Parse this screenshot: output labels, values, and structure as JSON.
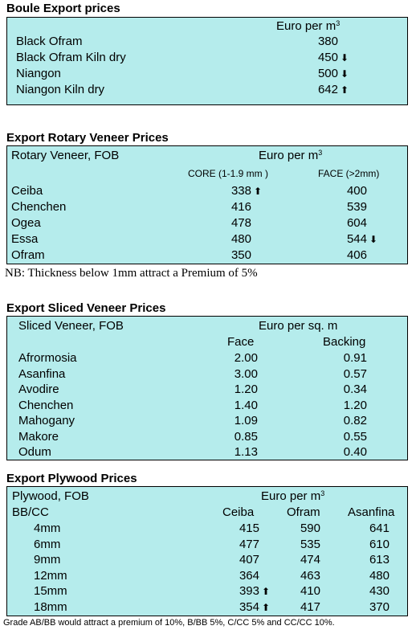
{
  "boule": {
    "title": "Boule Export prices",
    "unit": "Euro per m",
    "unit_sup": "3",
    "rows": [
      {
        "name": "Black Ofram",
        "value": "380",
        "arrow": ""
      },
      {
        "name": "Black Ofram  Kiln dry",
        "value": "450",
        "arrow": "down"
      },
      {
        "name": "Niangon",
        "value": "500",
        "arrow": "down"
      },
      {
        "name": "Niangon Kiln dry",
        "value": "642",
        "arrow": "up"
      }
    ]
  },
  "rotary": {
    "title": "Export Rotary Veneer Prices",
    "header_label": "Rotary Veneer,  FOB",
    "unit": "Euro  per m",
    "unit_sup": "3",
    "col_core": "CORE (1-1.9 mm )",
    "col_face": "FACE (>2mm)",
    "rows": [
      {
        "name": "Ceiba",
        "core": "338",
        "core_arrow": "up",
        "face": "400",
        "face_arrow": ""
      },
      {
        "name": "Chenchen",
        "core": "416",
        "core_arrow": "",
        "face": "539",
        "face_arrow": ""
      },
      {
        "name": "Ogea",
        "core": "478",
        "core_arrow": "",
        "face": "604",
        "face_arrow": ""
      },
      {
        "name": "Essa",
        "core": "480",
        "core_arrow": "",
        "face": "544",
        "face_arrow": "down"
      },
      {
        "name": "Ofram",
        "core": "350",
        "core_arrow": "",
        "face": "406",
        "face_arrow": ""
      }
    ],
    "note": "NB: Thickness below 1mm attract a Premium of 5%"
  },
  "sliced": {
    "title": "Export Sliced Veneer Prices",
    "header_label": "Sliced Veneer, FOB",
    "unit": "Euro per sq. m",
    "col_face": "Face",
    "col_backing": "Backing",
    "rows": [
      {
        "name": "Afrormosia",
        "face": "2.00",
        "backing": "0.91"
      },
      {
        "name": "Asanfina",
        "face": "3.00",
        "backing": "0.57"
      },
      {
        "name": "Avodire",
        "face": "1.20",
        "backing": "0.34"
      },
      {
        "name": "Chenchen",
        "face": "1.40",
        "backing": "1.20"
      },
      {
        "name": "Mahogany",
        "face": "1.09",
        "backing": "0.82"
      },
      {
        "name": "Makore",
        "face": "0.85",
        "backing": "0.55"
      },
      {
        "name": "Odum",
        "face": "1.13",
        "backing": "0.40"
      }
    ]
  },
  "plywood": {
    "title": "Export Plywood Prices",
    "header_label": "Plywood, FOB",
    "unit": "Euro per m",
    "unit_sup": "3",
    "grade": "BB/CC",
    "col_ceiba": "Ceiba",
    "col_ofram": "Ofram",
    "col_asanfina": "Asanfina",
    "rows": [
      {
        "size": "4mm",
        "ceiba": "415",
        "ceiba_arrow": "",
        "ofram": "590",
        "asanfina": "641"
      },
      {
        "size": "6mm",
        "ceiba": "477",
        "ceiba_arrow": "",
        "ofram": "535",
        "asanfina": "610"
      },
      {
        "size": "9mm",
        "ceiba": "407",
        "ceiba_arrow": "",
        "ofram": "474",
        "asanfina": "613"
      },
      {
        "size": "12mm",
        "ceiba": "364",
        "ceiba_arrow": "",
        "ofram": "463",
        "asanfina": "480"
      },
      {
        "size": "15mm",
        "ceiba": "393",
        "ceiba_arrow": "up",
        "ofram": "410",
        "asanfina": "430"
      },
      {
        "size": "18mm",
        "ceiba": "354",
        "ceiba_arrow": "up",
        "ofram": "417",
        "asanfina": "370"
      }
    ],
    "note": "Grade AB/BB would attract a premium of 10%, B/BB 5%, C/CC 5% and CC/CC 10%."
  },
  "colors": {
    "box_bg": "#b5ecec"
  }
}
